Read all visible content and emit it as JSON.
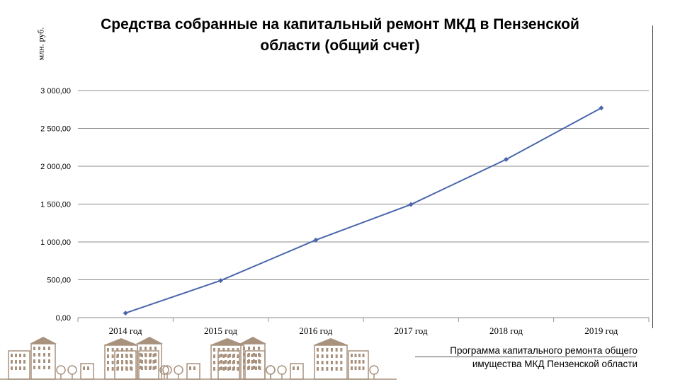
{
  "chart_data": {
    "type": "line",
    "title": "Средства собранные на капитальный ремонт МКД в Пензенской области (общий счет)",
    "ylabel": "млн. руб.",
    "categories": [
      "2014 год",
      "2015 год",
      "2016 год",
      "2017 год",
      "2018 год",
      "2019 год"
    ],
    "series": [
      {
        "values": [
          60,
          490,
          1025,
          1495,
          2090,
          2770
        ]
      }
    ],
    "ylim": [
      0,
      3000
    ],
    "yticks": [
      0,
      500,
      1000,
      1500,
      2000,
      2500,
      3000
    ],
    "ytick_labels": [
      "0,00",
      "500,00",
      "1 000,00",
      "1 500,00",
      "2 000,00",
      "2 500,00",
      "3 000,00"
    ],
    "grid": true,
    "line_color": "#4a66ad"
  },
  "footer": {
    "line1": "Программа капитального ремонта общего",
    "line2": "имущества МКД Пензенской области"
  },
  "decoration": {
    "skyline_color": "#a8927e",
    "icon": "town-skyline-illustration"
  }
}
